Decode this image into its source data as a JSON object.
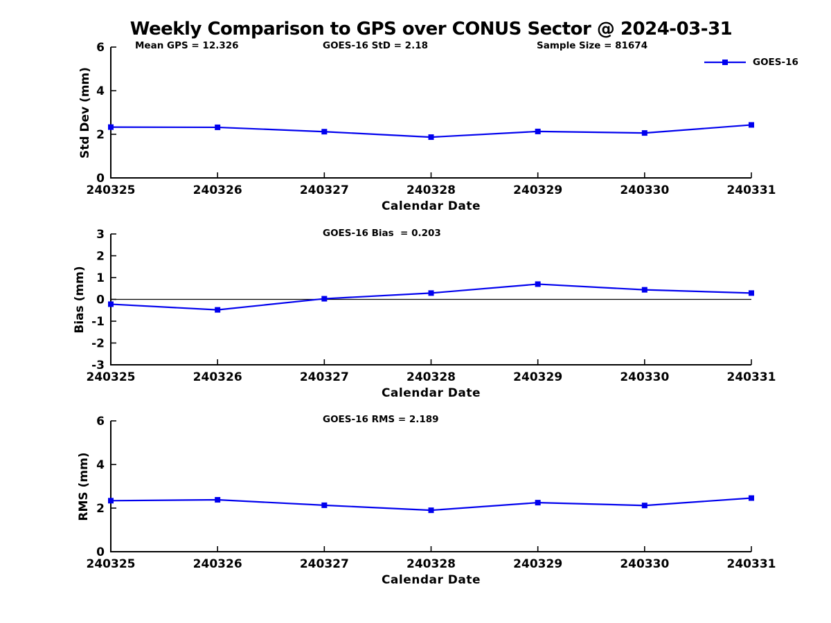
{
  "title": "Weekly Comparison to GPS over CONUS Sector @ 2024-03-31",
  "legend": {
    "label": "GOES-16"
  },
  "colors": {
    "line": "#0000EE",
    "axis": "#000000",
    "text": "#000000",
    "background": "#ffffff"
  },
  "chart_data": [
    {
      "type": "line",
      "name": "std-dev",
      "ylabel": "Std Dev (mm)",
      "xlabel": "Calendar Date",
      "ylim": [
        0,
        6
      ],
      "yticks": [
        0,
        2,
        4,
        6
      ],
      "categories": [
        "240325",
        "240326",
        "240327",
        "240328",
        "240329",
        "240330",
        "240331"
      ],
      "grid": false,
      "legend_position": "top-right",
      "annotations": [
        "Mean GPS = 12.326",
        "GOES-16 StD = 2.18",
        "Sample Size = 81674"
      ],
      "series": [
        {
          "name": "GOES-16",
          "marker": "square",
          "values": [
            2.33,
            2.32,
            2.12,
            1.87,
            2.13,
            2.06,
            2.43
          ]
        }
      ]
    },
    {
      "type": "line",
      "name": "bias",
      "ylabel": "Bias (mm)",
      "xlabel": "Calendar Date",
      "ylim": [
        -3,
        3
      ],
      "yticks": [
        -3,
        -2,
        -1,
        0,
        1,
        2,
        3
      ],
      "zero_line": true,
      "categories": [
        "240325",
        "240326",
        "240327",
        "240328",
        "240329",
        "240330",
        "240331"
      ],
      "grid": false,
      "annotations": [
        "GOES-16 Bias  = 0.203"
      ],
      "series": [
        {
          "name": "GOES-16",
          "marker": "square",
          "values": [
            -0.22,
            -0.48,
            0.03,
            0.29,
            0.7,
            0.44,
            0.29
          ]
        }
      ]
    },
    {
      "type": "line",
      "name": "rms",
      "ylabel": "RMS (mm)",
      "xlabel": "Calendar Date",
      "ylim": [
        0,
        6
      ],
      "yticks": [
        0,
        2,
        4,
        6
      ],
      "categories": [
        "240325",
        "240326",
        "240327",
        "240328",
        "240329",
        "240330",
        "240331"
      ],
      "grid": false,
      "annotations": [
        "GOES-16 RMS = 2.189"
      ],
      "series": [
        {
          "name": "GOES-16",
          "marker": "square",
          "values": [
            2.34,
            2.38,
            2.13,
            1.9,
            2.25,
            2.12,
            2.46
          ]
        }
      ]
    }
  ]
}
